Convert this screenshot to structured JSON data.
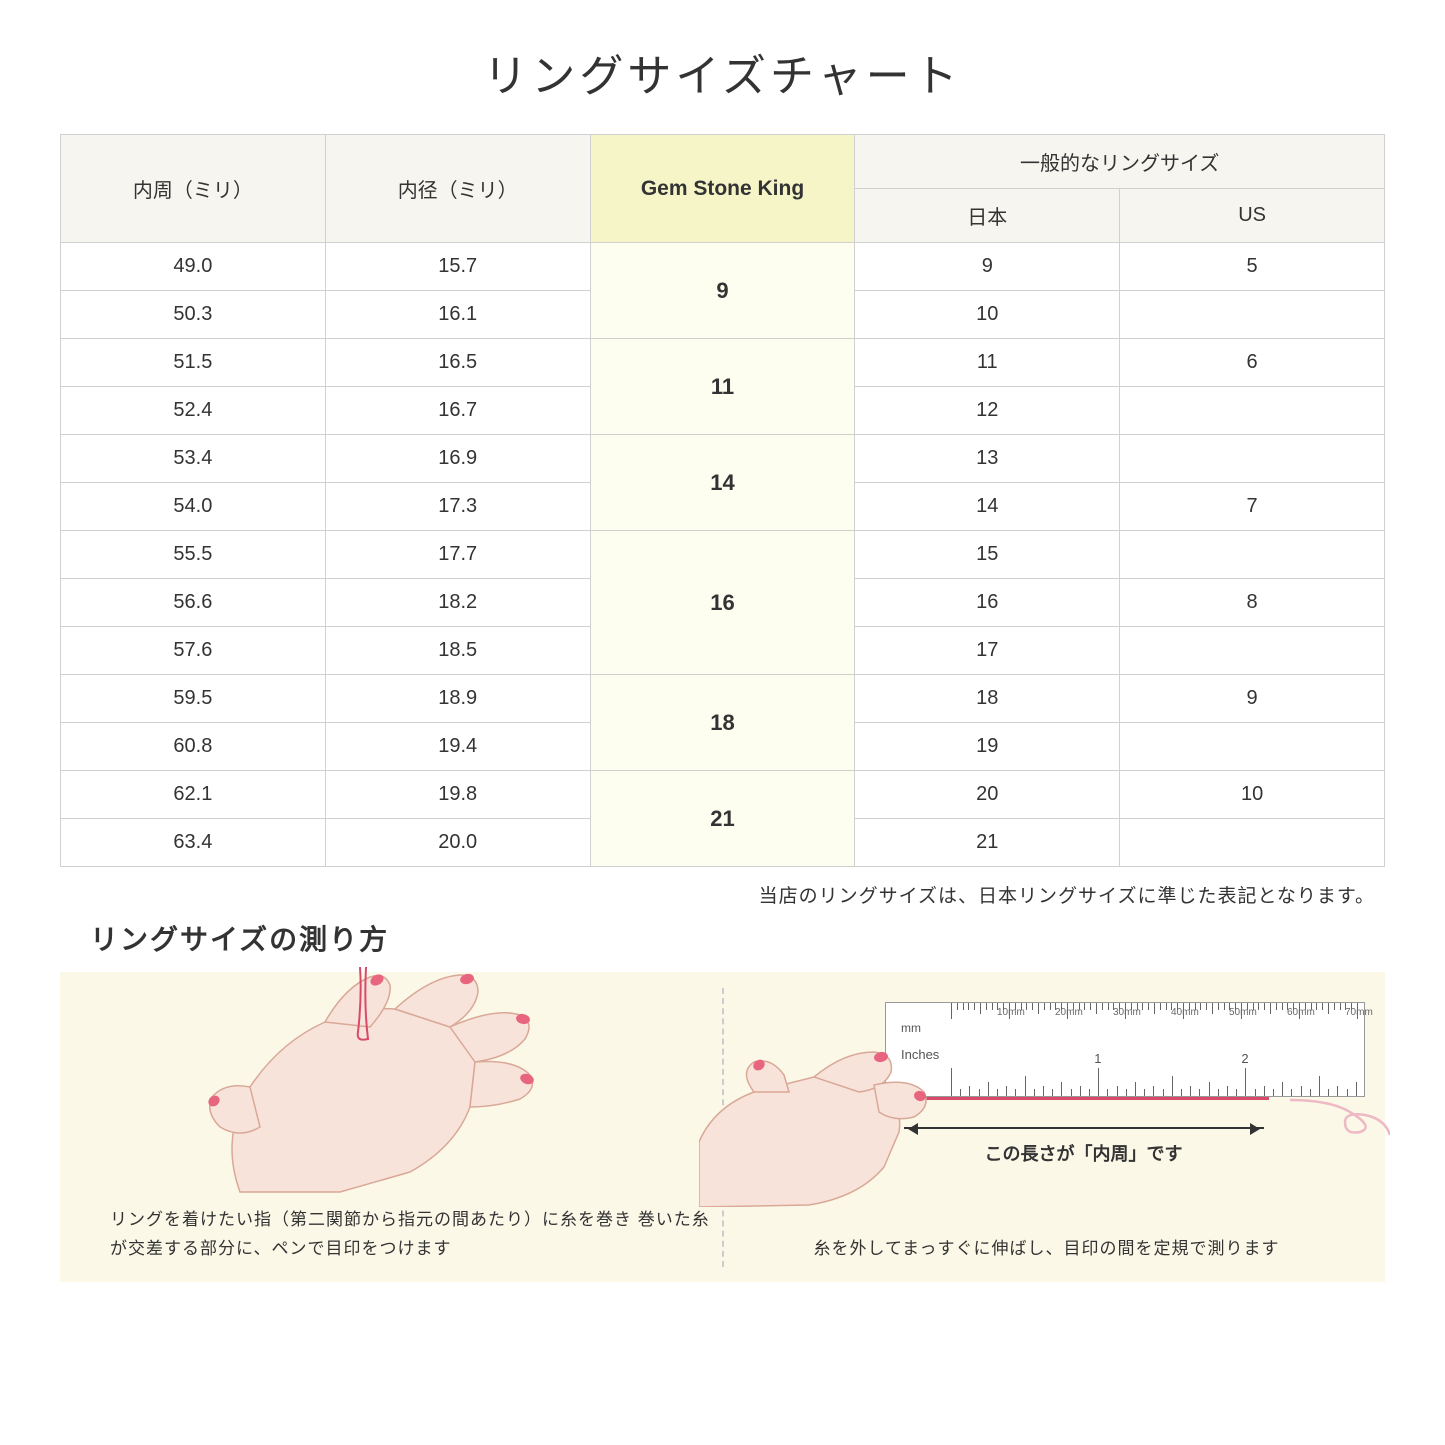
{
  "title": "リングサイズチャート",
  "headers": {
    "circumference": "内周（ミリ）",
    "diameter": "内径（ミリ）",
    "gsk": "Gem Stone King",
    "general": "一般的なリングサイズ",
    "japan": "日本",
    "us": "US"
  },
  "rows": [
    {
      "circ": "49.0",
      "dia": "15.7",
      "jp": "9",
      "us": "5"
    },
    {
      "circ": "50.3",
      "dia": "16.1",
      "jp": "10",
      "us": ""
    },
    {
      "circ": "51.5",
      "dia": "16.5",
      "jp": "11",
      "us": "6"
    },
    {
      "circ": "52.4",
      "dia": "16.7",
      "jp": "12",
      "us": ""
    },
    {
      "circ": "53.4",
      "dia": "16.9",
      "jp": "13",
      "us": ""
    },
    {
      "circ": "54.0",
      "dia": "17.3",
      "jp": "14",
      "us": "7"
    },
    {
      "circ": "55.5",
      "dia": "17.7",
      "jp": "15",
      "us": ""
    },
    {
      "circ": "56.6",
      "dia": "18.2",
      "jp": "16",
      "us": "8"
    },
    {
      "circ": "57.6",
      "dia": "18.5",
      "jp": "17",
      "us": ""
    },
    {
      "circ": "59.5",
      "dia": "18.9",
      "jp": "18",
      "us": "9"
    },
    {
      "circ": "60.8",
      "dia": "19.4",
      "jp": "19",
      "us": ""
    },
    {
      "circ": "62.1",
      "dia": "19.8",
      "jp": "20",
      "us": "10"
    },
    {
      "circ": "63.4",
      "dia": "20.0",
      "jp": "21",
      "us": ""
    }
  ],
  "gsk_groups": [
    {
      "span": 2,
      "val": "9"
    },
    {
      "span": 2,
      "val": "11"
    },
    {
      "span": 2,
      "val": "14"
    },
    {
      "span": 3,
      "val": "16"
    },
    {
      "span": 2,
      "val": "18"
    },
    {
      "span": 2,
      "val": "21"
    }
  ],
  "note": "当店のリングサイズは、日本リングサイズに準じた表記となります。",
  "subtitle": "リングサイズの測り方",
  "caption_left": "リングを着けたい指（第二関節から指元の間あたり）に糸を巻き\n巻いた糸が交差する部分に、ペンで目印をつけます",
  "caption_right": "糸を外してまっすぐに伸ばし、目印の間を定規で測ります",
  "arrow_label": "この長さが「内周」です",
  "ruler": {
    "mm_label": "mm",
    "in_label": "Inches",
    "mm_marks": [
      "10mm",
      "20mm",
      "30mm",
      "40mm",
      "50mm",
      "60mm",
      "70mm"
    ],
    "in_marks": [
      "1",
      "2"
    ]
  },
  "colors": {
    "header_bg": "#f7f5f0",
    "gsk_bg": "#f5f5c8",
    "gsk_cell_bg": "#fdfdf0",
    "howto_bg": "#fbf8e8",
    "hand_fill": "#f8e3db",
    "hand_stroke": "#d9a896",
    "nail": "#e8657f",
    "thread": "#d94a6a"
  }
}
